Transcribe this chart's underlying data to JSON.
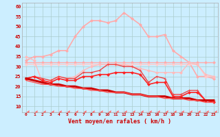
{
  "xlabel": "Vent moyen/en rafales ( km/h )",
  "background_color": "#cceeff",
  "grid_color": "#aacccc",
  "ylim": [
    7,
    62
  ],
  "yticks": [
    10,
    15,
    20,
    25,
    30,
    35,
    40,
    45,
    50,
    55,
    60
  ],
  "lines": [
    {
      "color": "#ffaaaa",
      "linewidth": 1.0,
      "marker": "D",
      "markersize": 2.0,
      "markerfacecolor": "#ffaaaa",
      "values": [
        32,
        32,
        32,
        32,
        32,
        32,
        32,
        32,
        32,
        32,
        32,
        32,
        32,
        32,
        32,
        32,
        32,
        32,
        32,
        32,
        32,
        32,
        32,
        32
      ]
    },
    {
      "color": "#ffaaaa",
      "linewidth": 1.2,
      "marker": "D",
      "markersize": 2.0,
      "markerfacecolor": "#ffaaaa",
      "values": [
        33,
        35,
        35,
        36,
        38,
        38,
        45,
        50,
        53,
        53,
        52,
        53,
        57,
        54,
        51,
        45,
        45,
        46,
        38,
        35,
        32,
        25,
        25,
        24
      ]
    },
    {
      "color": "#ffcccc",
      "linewidth": 1.0,
      "marker": "D",
      "markersize": 2.0,
      "markerfacecolor": "#ffcccc",
      "values": [
        31,
        31,
        31,
        31,
        31,
        31,
        31,
        31,
        31,
        31,
        31,
        31,
        31,
        31,
        31,
        31,
        31,
        31,
        31,
        31,
        31,
        31,
        25,
        25
      ]
    },
    {
      "color": "#ffbbbb",
      "linewidth": 1.0,
      "marker": "D",
      "markersize": 2.0,
      "markerfacecolor": "#ffbbbb",
      "values": [
        35,
        33,
        22,
        23,
        25,
        24,
        25,
        28,
        30,
        31,
        31,
        31,
        31,
        30,
        29,
        28,
        27,
        27,
        27,
        27,
        32,
        31,
        26,
        25
      ]
    },
    {
      "color": "#ee4444",
      "linewidth": 1.0,
      "marker": "+",
      "markersize": 3.5,
      "markerfacecolor": "#ee4444",
      "values": [
        24,
        25,
        24,
        23,
        25,
        24,
        24,
        27,
        27,
        28,
        31,
        31,
        30,
        30,
        28,
        22,
        25,
        24,
        16,
        16,
        18,
        18,
        13,
        13
      ]
    },
    {
      "color": "#ff2222",
      "linewidth": 1.2,
      "marker": "D",
      "markersize": 2.0,
      "markerfacecolor": "#ff2222",
      "values": [
        24,
        25,
        23,
        22,
        24,
        23,
        23,
        25,
        25,
        26,
        26,
        27,
        27,
        27,
        26,
        21,
        22,
        22,
        15,
        15,
        17,
        17,
        13,
        12
      ]
    },
    {
      "color": "#cc0000",
      "linewidth": 2.2,
      "marker": null,
      "markersize": 0,
      "values": [
        24,
        23,
        22,
        21,
        21,
        20,
        20,
        19,
        19,
        18,
        18,
        17,
        17,
        16,
        16,
        15,
        15,
        15,
        14,
        14,
        14,
        13,
        13,
        13
      ]
    },
    {
      "color": "#ff5555",
      "linewidth": 1.0,
      "marker": null,
      "markersize": 0,
      "values": [
        23,
        22,
        21,
        21,
        20,
        20,
        19,
        19,
        18,
        18,
        17,
        17,
        17,
        16,
        16,
        15,
        15,
        14,
        14,
        14,
        13,
        13,
        12,
        12
      ]
    },
    {
      "color": "#ff6666",
      "linewidth": 1.0,
      "marker": 4,
      "markersize": 4.0,
      "markerfacecolor": "#ff6666",
      "dashes": [
        3,
        2
      ],
      "values": [
        7,
        7,
        7,
        7,
        7,
        7,
        7,
        7,
        7,
        7,
        7,
        7,
        7,
        7,
        7,
        7,
        7,
        7,
        7,
        7,
        7,
        7,
        7,
        7
      ]
    }
  ]
}
